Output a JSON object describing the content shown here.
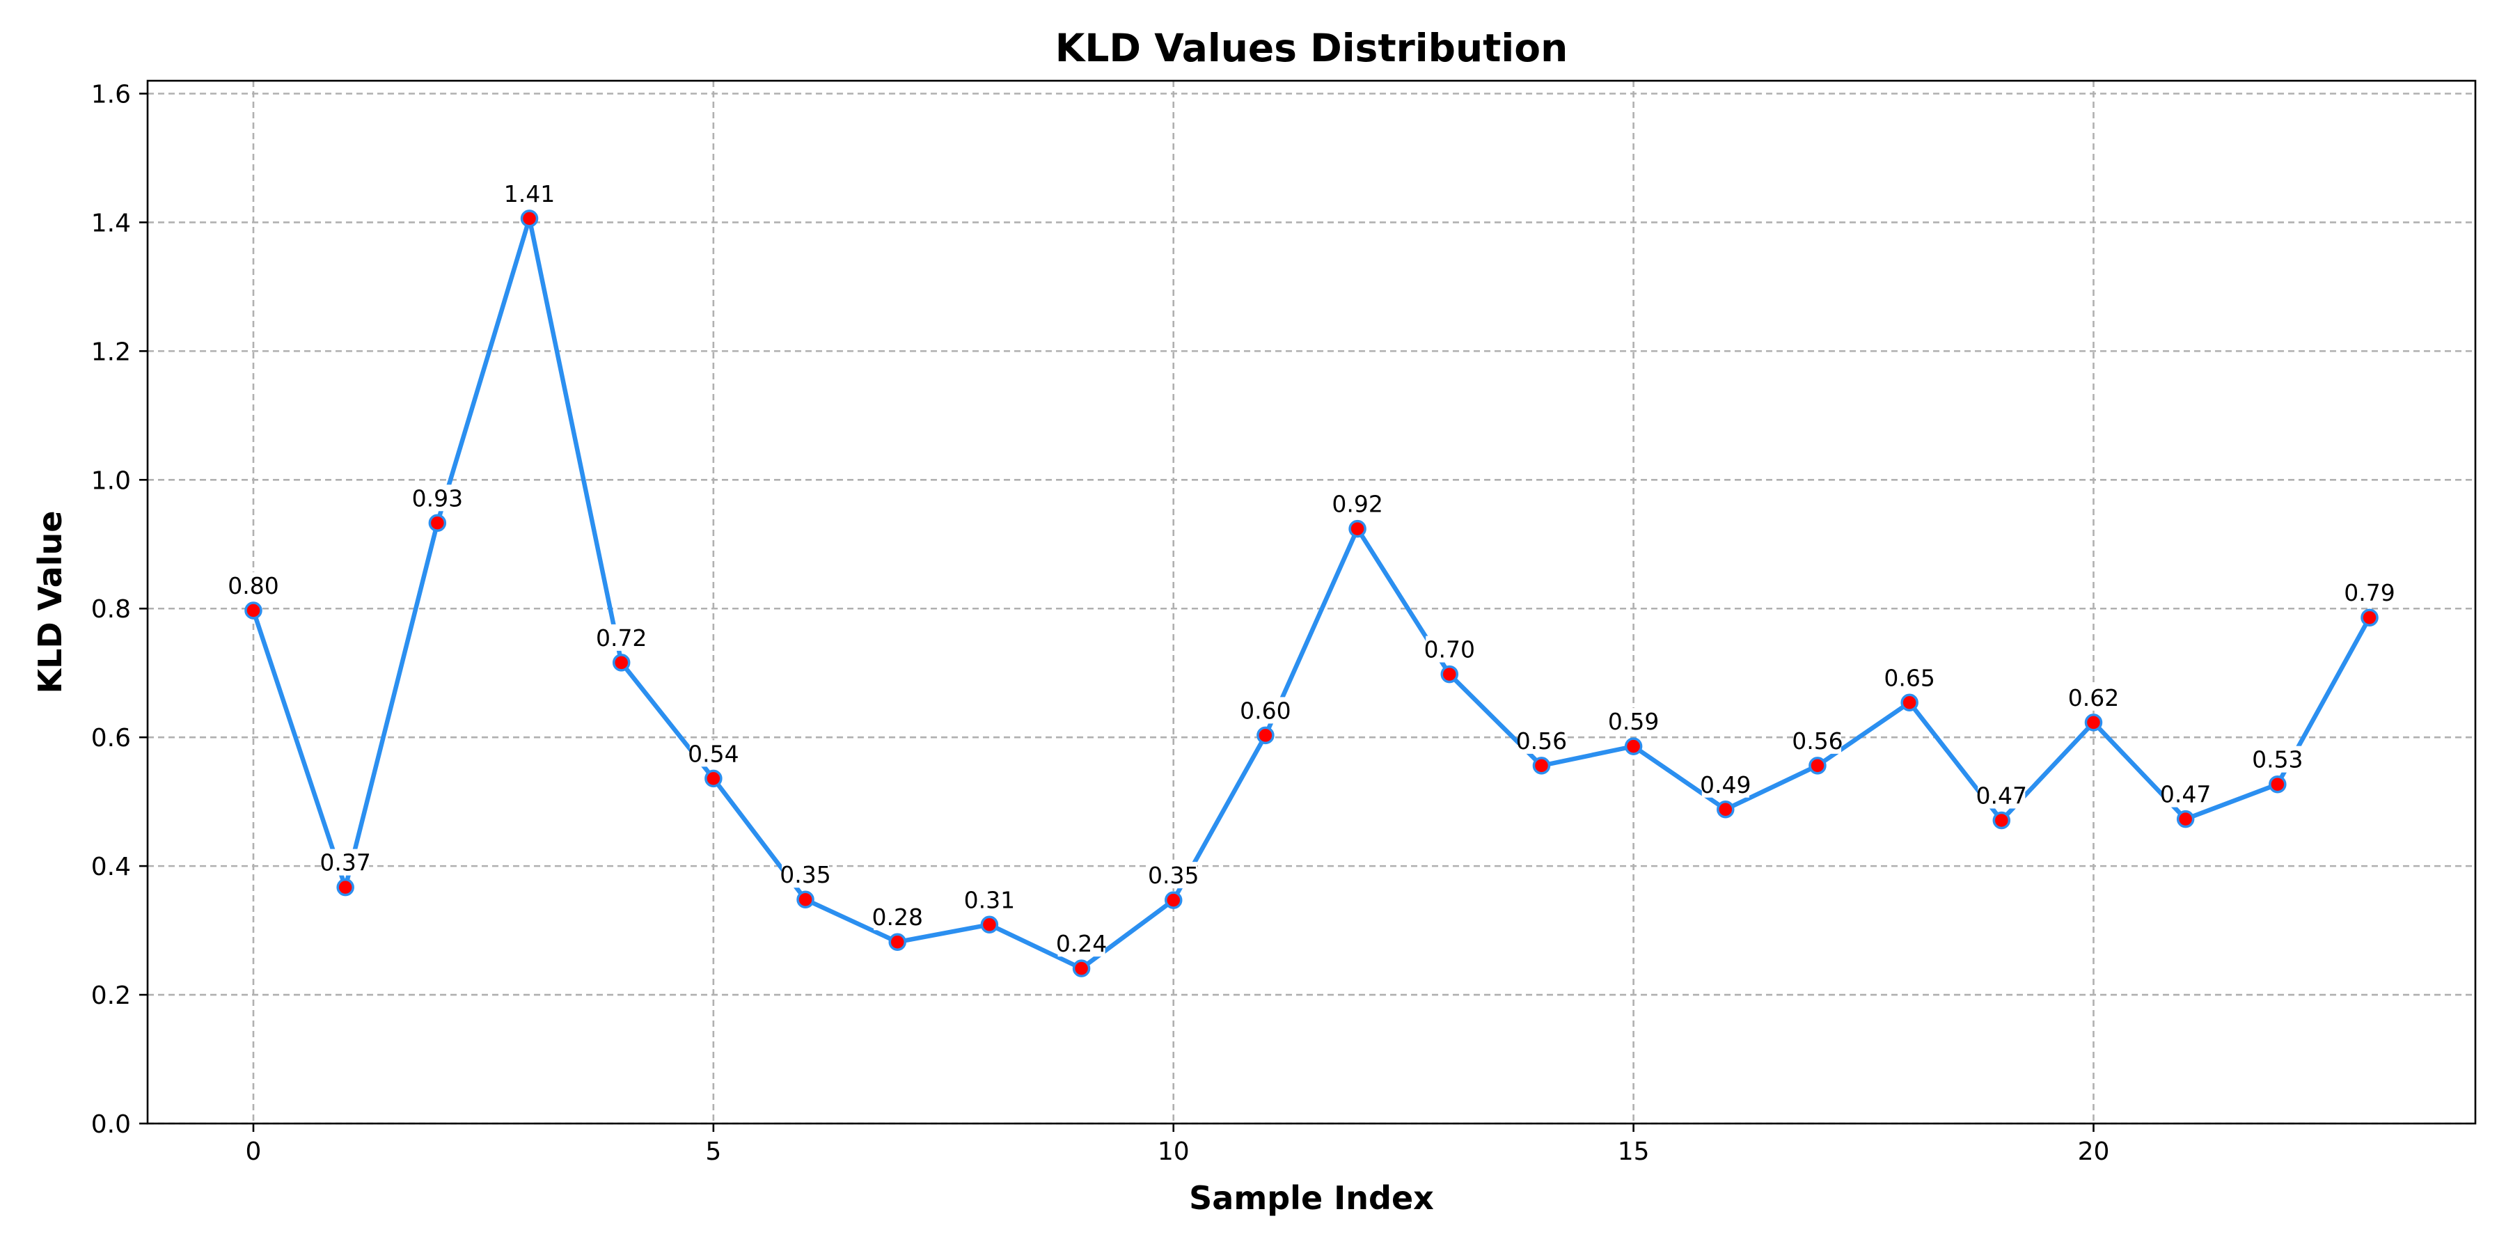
{
  "chart_data": {
    "type": "line",
    "title": "KLD Values Distribution",
    "xlabel": "Sample Index",
    "ylabel": "KLD Value",
    "xlim": [
      -1.15,
      24.15
    ],
    "ylim": [
      0.0,
      1.62
    ],
    "xticks": [
      0,
      5,
      10,
      15,
      20
    ],
    "yticks": [
      0.0,
      0.2,
      0.4,
      0.6,
      0.8,
      1.0,
      1.2,
      1.4,
      1.6
    ],
    "ytick_labels": [
      "0.0",
      "0.2",
      "0.4",
      "0.6",
      "0.8",
      "1.0",
      "1.2",
      "1.4",
      "1.6"
    ],
    "grid": true,
    "line_color": "#2b8ff0",
    "marker_color": "#ff0000",
    "marker_edge_color": "#2b8ff0",
    "series": [
      {
        "x": [
          0,
          1,
          2,
          3,
          4,
          5,
          6,
          7,
          8,
          9,
          10,
          11,
          12,
          13,
          14,
          15,
          16,
          17,
          18,
          19,
          20,
          21,
          22,
          23
        ],
        "values": [
          0.797,
          0.367,
          0.933,
          1.406,
          0.716,
          0.536,
          0.348,
          0.282,
          0.309,
          0.241,
          0.347,
          0.603,
          0.924,
          0.698,
          0.556,
          0.586,
          0.488,
          0.556,
          0.654,
          0.471,
          0.623,
          0.473,
          0.527,
          0.786
        ],
        "labels": [
          "0.80",
          "0.37",
          "0.93",
          "1.41",
          "0.72",
          "0.54",
          "0.35",
          "0.28",
          "0.31",
          "0.24",
          "0.35",
          "0.60",
          "0.92",
          "0.70",
          "0.56",
          "0.59",
          "0.49",
          "0.56",
          "0.65",
          "0.47",
          "0.62",
          "0.47",
          "0.53",
          "0.79"
        ]
      }
    ]
  }
}
